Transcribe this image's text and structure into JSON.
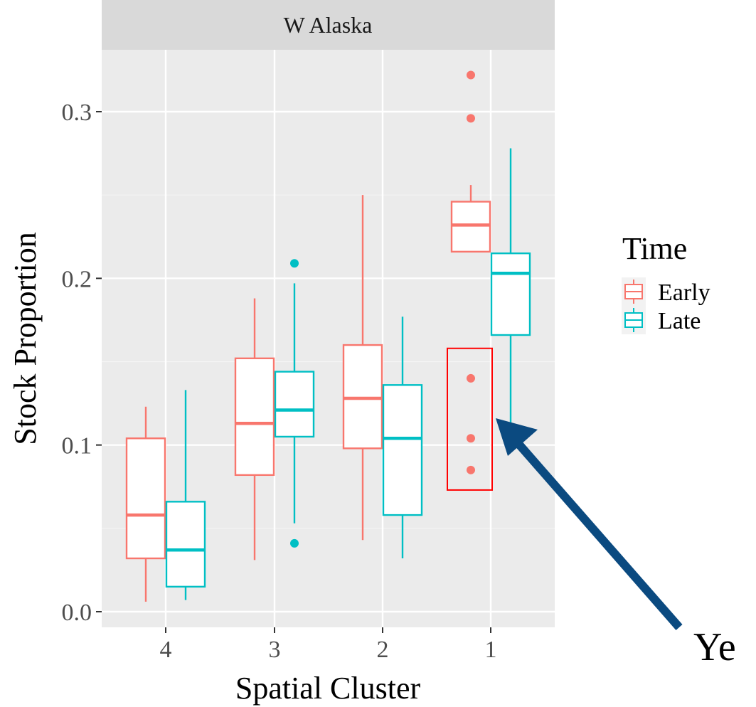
{
  "chart_data": {
    "type": "boxplot",
    "facet_title": "W Alaska",
    "xlabel": "Spatial Cluster",
    "ylabel": "Stock Proportion",
    "categories": [
      "4",
      "3",
      "2",
      "1"
    ],
    "ylim": [
      -0.01,
      0.33
    ],
    "yticks": [
      0.0,
      0.1,
      0.2,
      0.3
    ],
    "ytick_labels": [
      "0.0",
      "0.1",
      "0.2",
      "0.3"
    ],
    "grid": true,
    "legend": {
      "title": "Time",
      "position": "right"
    },
    "series": [
      {
        "name": "Early",
        "color": "#F8766D",
        "boxes": [
          {
            "category": "4",
            "min": 0.006,
            "q1": 0.032,
            "median": 0.058,
            "q3": 0.104,
            "max": 0.123,
            "outliers": []
          },
          {
            "category": "3",
            "min": 0.031,
            "q1": 0.082,
            "median": 0.113,
            "q3": 0.152,
            "max": 0.188,
            "outliers": []
          },
          {
            "category": "2",
            "min": 0.043,
            "q1": 0.098,
            "median": 0.128,
            "q3": 0.16,
            "max": 0.25,
            "outliers": []
          },
          {
            "category": "1",
            "min": 0.216,
            "q1": 0.216,
            "median": 0.232,
            "q3": 0.246,
            "max": 0.256,
            "outliers": [
              0.322,
              0.296,
              0.14,
              0.104,
              0.085
            ]
          }
        ]
      },
      {
        "name": "Late",
        "color": "#00BFC4",
        "boxes": [
          {
            "category": "4",
            "min": 0.007,
            "q1": 0.015,
            "median": 0.037,
            "q3": 0.066,
            "max": 0.133,
            "outliers": []
          },
          {
            "category": "3",
            "min": 0.053,
            "q1": 0.105,
            "median": 0.121,
            "q3": 0.144,
            "max": 0.197,
            "outliers": [
              0.209,
              0.041
            ]
          },
          {
            "category": "2",
            "min": 0.032,
            "q1": 0.058,
            "median": 0.104,
            "q3": 0.136,
            "max": 0.177,
            "outliers": []
          },
          {
            "category": "1",
            "min": 0.113,
            "q1": 0.166,
            "median": 0.203,
            "q3": 0.215,
            "max": 0.278,
            "outliers": []
          }
        ]
      }
    ],
    "highlight_box": {
      "color": "#ff0000",
      "category": "1",
      "series": "Early",
      "y_range": [
        0.073,
        0.158
      ]
    },
    "annotation": {
      "text": "Ye",
      "arrow_color": "#0b4a80"
    }
  }
}
